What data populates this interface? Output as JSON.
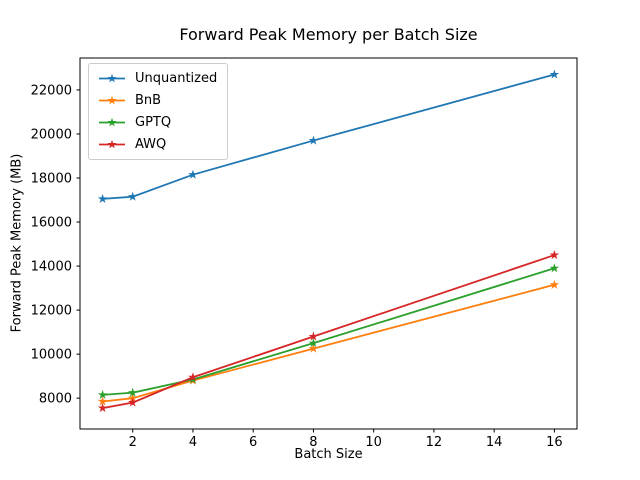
{
  "chart_data": {
    "type": "line",
    "title": "Forward Peak Memory per Batch Size",
    "xlabel": "Batch Size",
    "ylabel": "Forward Peak Memory (MB)",
    "x": [
      1,
      2,
      4,
      8,
      16
    ],
    "series": [
      {
        "name": "Unquantized",
        "color": "#1f77b4",
        "values": [
          17050,
          17150,
          18150,
          19700,
          22700
        ]
      },
      {
        "name": "BnB",
        "color": "#ff7f0e",
        "values": [
          7850,
          8000,
          8800,
          10250,
          13150
        ]
      },
      {
        "name": "GPTQ",
        "color": "#2ca02c",
        "values": [
          8150,
          8250,
          8850,
          10500,
          13900
        ]
      },
      {
        "name": "AWQ",
        "color": "#d62728",
        "values": [
          7550,
          7800,
          8950,
          10800,
          14500
        ]
      }
    ],
    "marker": "star",
    "xticks": [
      2,
      4,
      6,
      8,
      10,
      12,
      14,
      16
    ],
    "yticks": [
      8000,
      10000,
      12000,
      14000,
      16000,
      18000,
      20000,
      22000
    ],
    "xlim": [
      0.25,
      16.75
    ],
    "ylim": [
      6600,
      23450
    ],
    "grid": false,
    "legend_position": "upper left",
    "axis_color": "#000000",
    "background_color": "#ffffff"
  }
}
